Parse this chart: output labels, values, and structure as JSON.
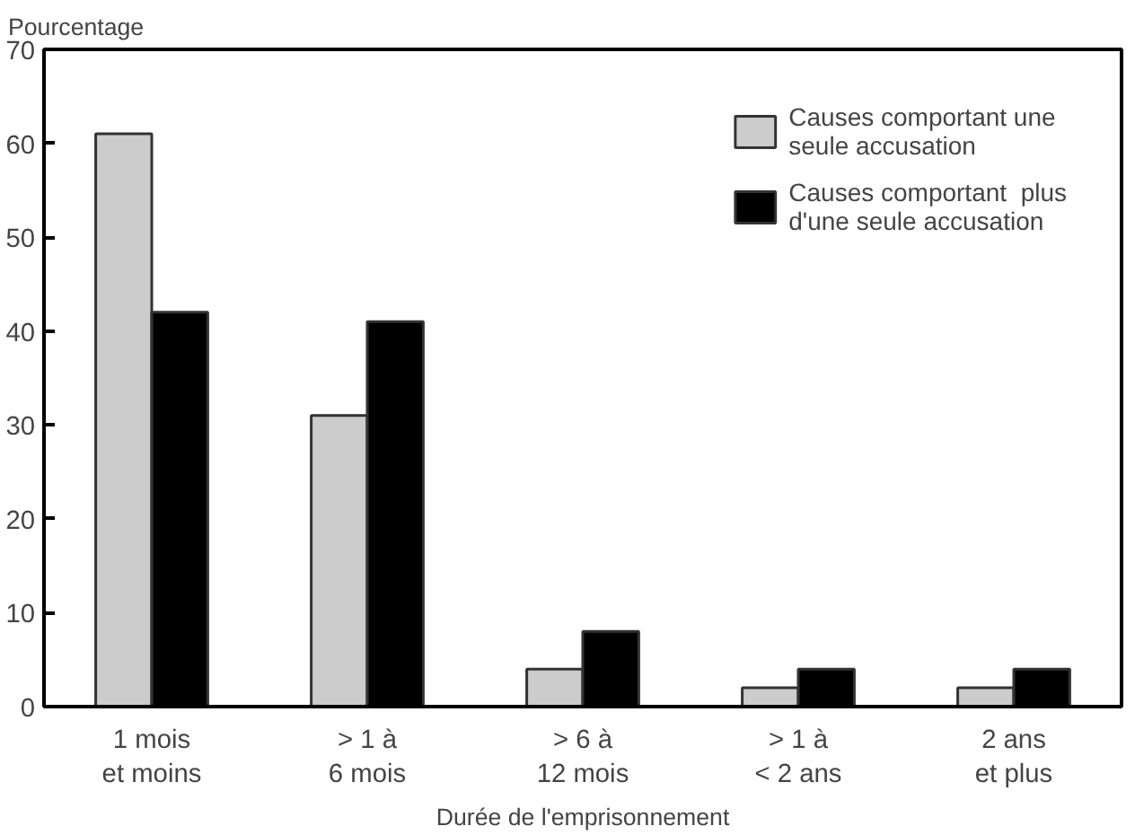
{
  "chart_data": {
    "type": "bar",
    "ylabel": "Pourcentage",
    "xlabel": "Durée de l'emprisonnement",
    "categories": [
      "1 mois\net moins",
      "> 1 à\n6 mois",
      "> 6 à\n12 mois",
      "> 1 à\n< 2 ans",
      "2 ans\net plus"
    ],
    "series": [
      {
        "name": "Causes comportant une\nseule accusation",
        "color": "#cccccc",
        "values": [
          61,
          31,
          4,
          2,
          2
        ]
      },
      {
        "name": "Causes comportant  plus\nd'une seule accusation",
        "color": "#000000",
        "values": [
          42,
          41,
          8,
          4,
          4
        ]
      }
    ],
    "ylim": [
      0,
      70
    ],
    "yticks": [
      0,
      10,
      20,
      30,
      40,
      50,
      60,
      70
    ],
    "grid": false,
    "legend": "top right"
  }
}
